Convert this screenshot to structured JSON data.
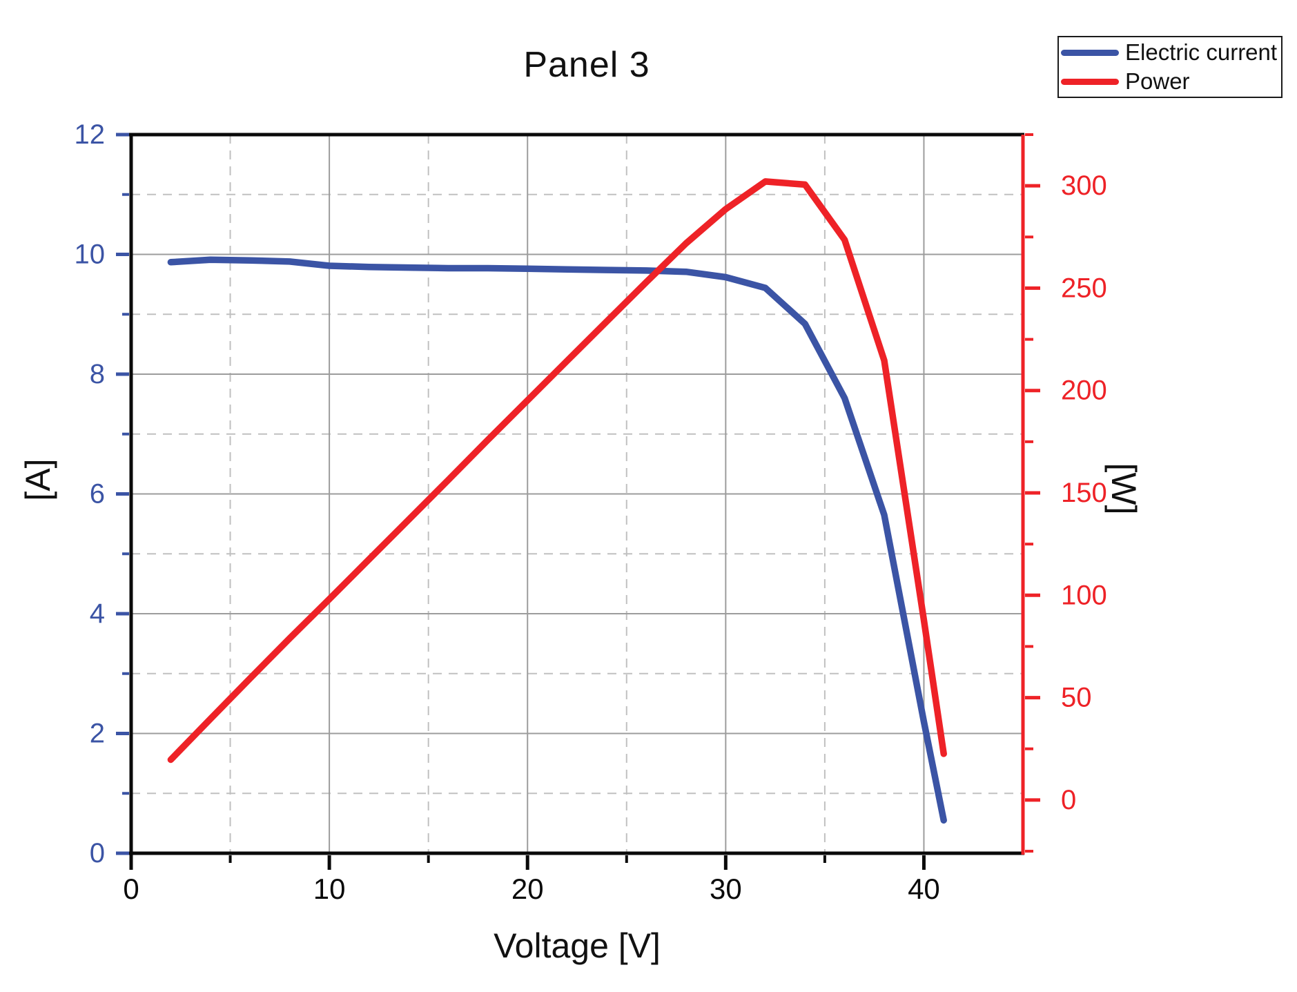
{
  "title": "Panel 3",
  "axes": {
    "x_label": "Voltage [V]",
    "y_left_label": "[A]",
    "y_right_label": "[W]"
  },
  "legend": {
    "position": "top-right",
    "items": [
      {
        "label": "Electric current",
        "series": "current"
      },
      {
        "label": "Power",
        "series": "power"
      }
    ]
  },
  "colors": {
    "current": "#3B54A5",
    "power": "#EE2227",
    "axis_black": "#0a0a0a",
    "grid_major": "#9c9c9c",
    "grid_minor": "#c0c0c0",
    "left_tick_label": "#3B54A5",
    "right_tick_label": "#EE2227",
    "x_tick_label": "#0a0a0a",
    "background": "#ffffff"
  },
  "chart_data": {
    "type": "line",
    "title": "Panel 3",
    "xlabel": "Voltage [V]",
    "ylabel_left": "[A]",
    "ylabel_right": "[W]",
    "xlim": [
      0,
      45
    ],
    "x_major_ticks": [
      0,
      10,
      20,
      30,
      40
    ],
    "x_minor_ticks": [
      5,
      15,
      25,
      35
    ],
    "ylim_left": [
      0,
      12
    ],
    "y_left_major_ticks": [
      0,
      2,
      4,
      6,
      8,
      10,
      12
    ],
    "y_left_minor_ticks": [
      1,
      3,
      5,
      7,
      9,
      11
    ],
    "ylim_right": [
      -26,
      325
    ],
    "y_right_major_ticks": [
      0,
      50,
      100,
      150,
      200,
      250,
      300
    ],
    "y_right_minor_ticks": [
      -25,
      25,
      75,
      125,
      175,
      225,
      275,
      325
    ],
    "grid": true,
    "legend_position": "top-right",
    "series": [
      {
        "name": "Electric current",
        "axis": "left",
        "color_key": "current",
        "x": [
          2,
          4,
          6,
          8,
          10,
          12,
          14,
          16,
          18,
          20,
          22,
          24,
          26,
          28,
          30,
          32,
          34,
          36,
          38,
          40,
          41
        ],
        "y": [
          9.87,
          9.91,
          9.9,
          9.88,
          9.81,
          9.79,
          9.78,
          9.77,
          9.77,
          9.76,
          9.75,
          9.74,
          9.73,
          9.71,
          9.62,
          9.44,
          8.84,
          7.6,
          5.65,
          2.2,
          0.55
        ]
      },
      {
        "name": "Power",
        "axis": "right",
        "color_key": "power",
        "x": [
          2,
          4,
          6,
          8,
          10,
          12,
          14,
          16,
          18,
          20,
          22,
          24,
          26,
          28,
          30,
          32,
          34,
          36,
          38,
          40,
          41
        ],
        "y": [
          19.7,
          39.6,
          59.4,
          79.0,
          98.1,
          117.5,
          136.9,
          156.3,
          175.9,
          195.2,
          214.5,
          233.8,
          253.0,
          271.9,
          288.6,
          302.1,
          300.6,
          273.6,
          214.7,
          88.0,
          22.6
        ]
      }
    ]
  }
}
